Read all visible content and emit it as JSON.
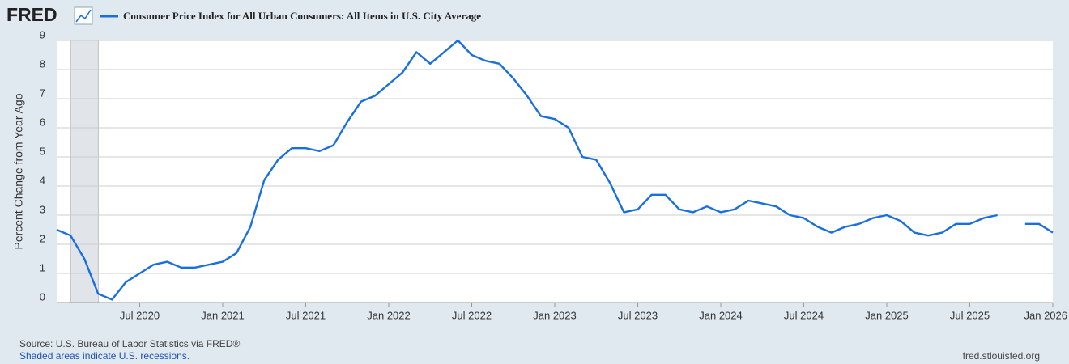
{
  "chart_data": {
    "type": "line",
    "logo": "FRED",
    "ylabel": "Percent Change from Year Ago",
    "source": "Source: U.S. Bureau of Labor Statistics via FRED®",
    "note": "Shaded areas indicate U.S. recessions.",
    "url": "fred.stlouisfed.org",
    "x": [
      "Jan 2020",
      "Feb 2020",
      "Mar 2020",
      "Apr 2020",
      "May 2020",
      "Jun 2020",
      "Jul 2020",
      "Aug 2020",
      "Sep 2020",
      "Oct 2020",
      "Nov 2020",
      "Dec 2020",
      "Jan 2021",
      "Feb 2021",
      "Mar 2021",
      "Apr 2021",
      "May 2021",
      "Jun 2021",
      "Jul 2021",
      "Aug 2021",
      "Sep 2021",
      "Oct 2021",
      "Nov 2021",
      "Dec 2021",
      "Jan 2022",
      "Feb 2022",
      "Mar 2022",
      "Apr 2022",
      "May 2022",
      "Jun 2022",
      "Jul 2022",
      "Aug 2022",
      "Sep 2022",
      "Oct 2022",
      "Nov 2022",
      "Dec 2022",
      "Jan 2023",
      "Feb 2023",
      "Mar 2023",
      "Apr 2023",
      "May 2023",
      "Jun 2023",
      "Jul 2023",
      "Aug 2023",
      "Sep 2023",
      "Oct 2023",
      "Nov 2023",
      "Dec 2023",
      "Jan 2024",
      "Feb 2024",
      "Mar 2024",
      "Apr 2024",
      "May 2024",
      "Jun 2024",
      "Jul 2024",
      "Aug 2024",
      "Sep 2024",
      "Oct 2024",
      "Nov 2024",
      "Dec 2024",
      "Jan 2025",
      "Feb 2025",
      "Mar 2025",
      "Apr 2025",
      "May 2025",
      "Jun 2025",
      "Jul 2025",
      "Aug 2025",
      "Sep 2025",
      "Oct 2025",
      "Nov 2025",
      "Dec 2025",
      "Jan 2026"
    ],
    "series": [
      {
        "name": "Consumer Price Index for All Urban Consumers: All Items in U.S. City Average",
        "color": "#1a6fdf",
        "values": [
          2.5,
          2.3,
          1.5,
          0.3,
          0.1,
          0.7,
          1.0,
          1.3,
          1.4,
          1.2,
          1.2,
          1.3,
          1.4,
          1.7,
          2.6,
          4.2,
          4.9,
          5.3,
          5.3,
          5.2,
          5.4,
          6.2,
          6.9,
          7.1,
          7.5,
          7.9,
          8.6,
          8.2,
          8.6,
          9.0,
          8.5,
          8.3,
          8.2,
          7.7,
          7.1,
          6.4,
          6.3,
          6.0,
          5.0,
          4.9,
          4.1,
          3.1,
          3.2,
          3.7,
          3.7,
          3.2,
          3.1,
          3.3,
          3.1,
          3.2,
          3.5,
          3.4,
          3.3,
          3.0,
          2.9,
          2.6,
          2.4,
          2.6,
          2.7,
          2.9,
          3.0,
          2.8,
          2.4,
          2.3,
          2.4,
          2.7,
          2.7,
          2.9,
          3.0,
          null,
          2.7,
          2.7,
          2.4
        ]
      }
    ],
    "recessions": [
      {
        "start": "Feb 2020",
        "end": "Apr 2020"
      }
    ],
    "ylim": [
      0,
      9
    ],
    "yticks": [
      0,
      1,
      2,
      3,
      4,
      5,
      6,
      7,
      8,
      9
    ],
    "xticks": [
      "Jul 2020",
      "Jan 2021",
      "Jul 2021",
      "Jan 2022",
      "Jul 2022",
      "Jan 2023",
      "Jul 2023",
      "Jan 2024",
      "Jul 2024",
      "Jan 2025",
      "Jul 2025",
      "Jan 2026"
    ],
    "grid": true
  }
}
